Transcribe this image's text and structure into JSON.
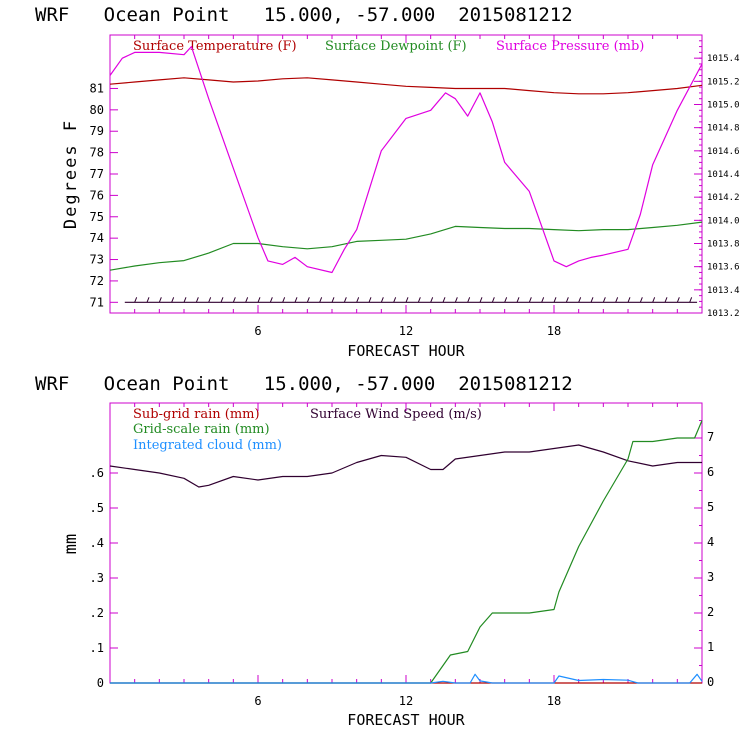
{
  "colors": {
    "temperature": "#b00000",
    "dewpoint": "#228b22",
    "pressure": "#e000e0",
    "subgrid_rain": "#b00000",
    "grid_rain": "#228b22",
    "cloud": "#1e8fff",
    "wind": "#300030"
  },
  "chart_data": [
    {
      "type": "line",
      "title": "WRF   Ocean Point   15.000, -57.000  2015081212",
      "xlabel": "FORECAST HOUR",
      "ylabel": "Degrees F",
      "xlim": [
        0,
        24
      ],
      "ylim": [
        70.5,
        83.5
      ],
      "y2lim": [
        1013.2,
        1015.6
      ],
      "x_ticks": [
        "6",
        "12",
        "18"
      ],
      "y_ticks": [
        "71",
        "72",
        "73",
        "74",
        "75",
        "76",
        "77",
        "78",
        "79",
        "80",
        "81"
      ],
      "y2_ticks": [
        "1013.2",
        "1013.4",
        "1013.6",
        "1013.8",
        "1014.0",
        "1014.2",
        "1014.4",
        "1014.6",
        "1014.8",
        "1015.0",
        "1015.2",
        "1015.4"
      ],
      "legend": [
        "Surface Temperature (F)",
        "Surface Dewpoint (F)",
        "Surface Pressure (mb)"
      ],
      "wind_barb_level": 71,
      "series": [
        {
          "name": "Surface Temperature (F)",
          "axis": "left",
          "x": [
            0,
            1,
            2,
            3,
            4,
            5,
            6,
            7,
            8,
            9,
            10,
            11,
            12,
            13,
            14,
            15,
            16,
            17,
            18,
            19,
            20,
            21,
            22,
            23,
            24
          ],
          "values": [
            81.2,
            81.3,
            81.4,
            81.5,
            81.4,
            81.3,
            81.35,
            81.45,
            81.5,
            81.4,
            81.3,
            81.2,
            81.1,
            81.05,
            81.0,
            81.0,
            81.0,
            80.9,
            80.8,
            80.75,
            80.75,
            80.8,
            80.9,
            81.0,
            81.15
          ]
        },
        {
          "name": "Surface Dewpoint (F)",
          "axis": "left",
          "x": [
            0,
            1,
            2,
            3,
            4,
            5,
            6,
            7,
            8,
            9,
            10,
            11,
            12,
            13,
            14,
            15,
            16,
            17,
            18,
            19,
            20,
            21,
            22,
            23,
            24
          ],
          "values": [
            72.5,
            72.7,
            72.85,
            72.95,
            73.3,
            73.75,
            73.75,
            73.6,
            73.5,
            73.6,
            73.85,
            73.9,
            73.95,
            74.2,
            74.55,
            74.5,
            74.45,
            74.45,
            74.4,
            74.35,
            74.4,
            74.4,
            74.5,
            74.6,
            74.75
          ]
        },
        {
          "name": "Surface Pressure (mb)",
          "axis": "right",
          "x": [
            0,
            0.5,
            1,
            2,
            3,
            3.3,
            4,
            5,
            6,
            6.4,
            7,
            7.5,
            8,
            9,
            9.5,
            10,
            11,
            12,
            13,
            13.6,
            14,
            14.5,
            15,
            15.5,
            16,
            17,
            18,
            18.5,
            19,
            19.5,
            20,
            21,
            21.5,
            22,
            23,
            24
          ],
          "values": [
            1015.25,
            1015.4,
            1015.45,
            1015.45,
            1015.43,
            1015.5,
            1015.05,
            1014.45,
            1013.85,
            1013.65,
            1013.62,
            1013.68,
            1013.6,
            1013.55,
            1013.75,
            1013.92,
            1014.6,
            1014.88,
            1014.95,
            1015.1,
            1015.05,
            1014.9,
            1015.1,
            1014.85,
            1014.5,
            1014.25,
            1013.65,
            1013.6,
            1013.65,
            1013.68,
            1013.7,
            1013.75,
            1014.05,
            1014.48,
            1014.95,
            1015.35
          ]
        }
      ]
    },
    {
      "type": "line",
      "title": "WRF   Ocean Point   15.000, -57.000  2015081212",
      "xlabel": "FORECAST HOUR",
      "ylabel": "mm",
      "xlim": [
        0,
        24
      ],
      "ylim": [
        0,
        0.8
      ],
      "y2lim": [
        0,
        8
      ],
      "x_ticks": [
        "6",
        "12",
        "18"
      ],
      "y_ticks": [
        "0",
        ".1",
        ".2",
        ".3",
        ".4",
        ".5",
        ".6"
      ],
      "y2_ticks": [
        "0",
        "1",
        "2",
        "3",
        "4",
        "5",
        "6",
        "7"
      ],
      "legend": [
        "Sub-grid rain (mm)",
        "Surface Wind Speed (m/s)",
        "Grid-scale rain (mm)",
        "Integrated cloud (mm)"
      ],
      "series": [
        {
          "name": "Sub-grid rain (mm)",
          "axis": "left",
          "x": [
            0,
            24
          ],
          "values": [
            0,
            0
          ]
        },
        {
          "name": "Surface Wind Speed (m/s)",
          "axis": "right",
          "x": [
            0,
            1,
            2,
            3,
            3.6,
            4,
            5,
            6,
            7,
            8,
            9,
            10,
            11,
            12,
            13,
            13.5,
            14,
            15,
            16,
            17,
            18,
            19,
            20,
            21,
            22,
            23,
            24
          ],
          "values": [
            6.2,
            6.1,
            6.0,
            5.85,
            5.6,
            5.65,
            5.9,
            5.8,
            5.9,
            5.9,
            6.0,
            6.3,
            6.5,
            6.45,
            6.1,
            6.1,
            6.4,
            6.5,
            6.6,
            6.6,
            6.7,
            6.8,
            6.6,
            6.35,
            6.2,
            6.3,
            6.3
          ]
        },
        {
          "name": "Grid-scale rain (mm)",
          "axis": "left",
          "x": [
            0,
            13,
            13.8,
            14.5,
            15,
            15.5,
            16,
            17,
            18,
            18.2,
            19,
            20,
            21,
            21.2,
            22,
            23,
            23.7,
            24
          ],
          "values": [
            0,
            0,
            0.08,
            0.09,
            0.16,
            0.2,
            0.2,
            0.2,
            0.21,
            0.26,
            0.39,
            0.52,
            0.64,
            0.69,
            0.69,
            0.7,
            0.7,
            0.75
          ]
        },
        {
          "name": "Integrated cloud (mm)",
          "axis": "left",
          "x": [
            0,
            13,
            13.5,
            14,
            14.6,
            14.8,
            15,
            15.5,
            18,
            18.2,
            19,
            20,
            21,
            21.4,
            23.5,
            23.8,
            24
          ],
          "values": [
            0,
            0,
            0.005,
            0,
            0,
            0.025,
            0.006,
            0,
            0,
            0.02,
            0.007,
            0.01,
            0.008,
            0,
            0,
            0.025,
            0.005
          ]
        }
      ]
    }
  ]
}
